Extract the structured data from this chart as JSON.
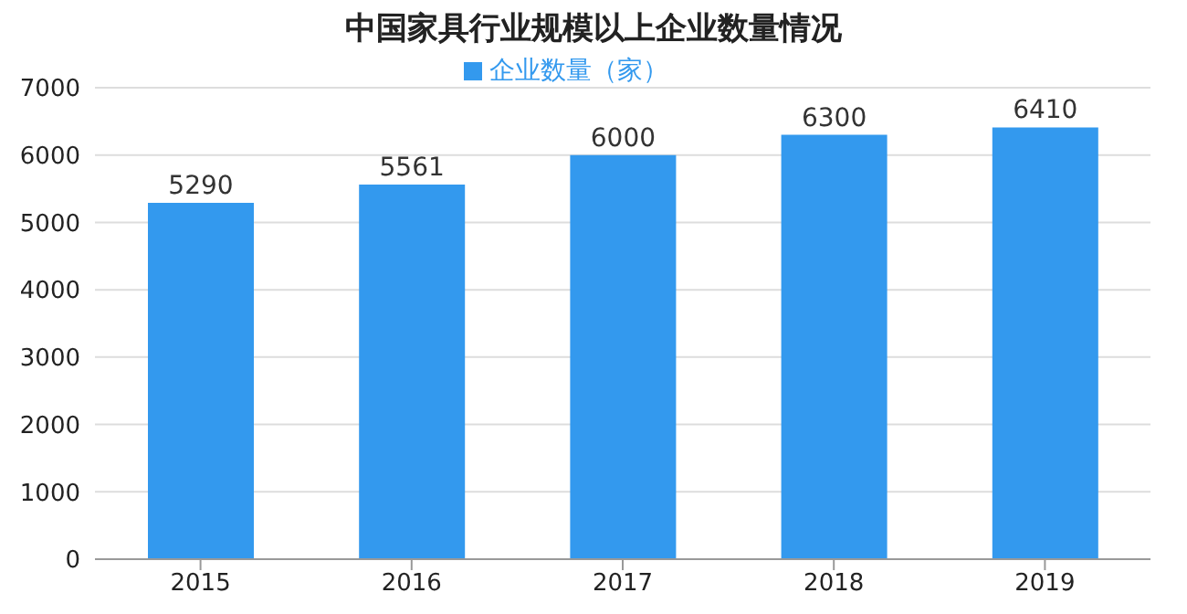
{
  "chart_data": {
    "type": "bar",
    "title": "中国家具行业规模以上企业数量情况",
    "categories": [
      "2015",
      "2016",
      "2017",
      "2018",
      "2019"
    ],
    "series": [
      {
        "name": "企业数量（家）",
        "color": "#3399ee",
        "values": [
          5290,
          5561,
          6000,
          6300,
          6410
        ]
      }
    ],
    "ylim": [
      0,
      7000
    ],
    "yticks": [
      0,
      1000,
      2000,
      3000,
      4000,
      5000,
      6000,
      7000
    ],
    "grid": "y",
    "legend": "top",
    "data_labels": true
  }
}
